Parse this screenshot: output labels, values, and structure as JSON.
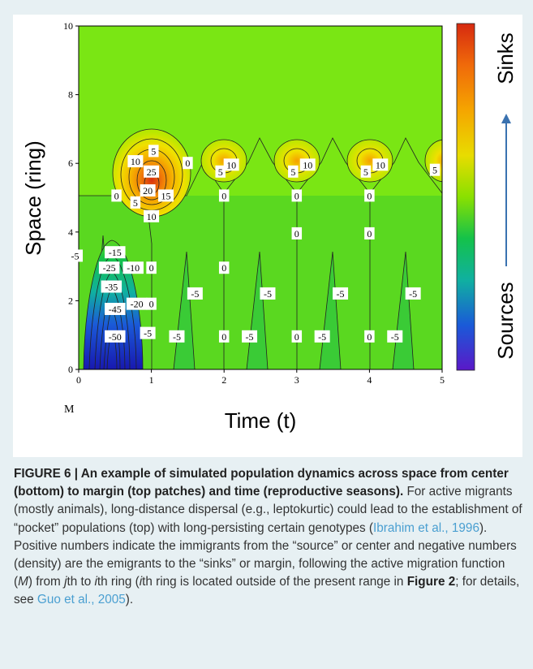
{
  "chart_data": {
    "type": "heatmap",
    "subtype": "contour",
    "xlabel": "Time (t)",
    "ylabel": "Space (ring)",
    "corner_label": "M",
    "xlim": [
      0,
      5
    ],
    "ylim": [
      0,
      10
    ],
    "x_ticks": [
      "0",
      "1",
      "2",
      "3",
      "4",
      "5"
    ],
    "y_ticks": [
      "0",
      "2",
      "4",
      "6",
      "8",
      "10"
    ],
    "grid": false,
    "colorbar": {
      "top_label": "Sinks",
      "bottom_label": "Sources",
      "colors": [
        "#d62a10",
        "#f06a0a",
        "#f5a500",
        "#e8dc00",
        "#8ae000",
        "#14c24a",
        "#10b0a0",
        "#1a5ad8",
        "#5a18c8"
      ]
    },
    "background_color": "#7ae614",
    "contour_labels": [
      {
        "x": 1.03,
        "y": 6.35,
        "text": "5"
      },
      {
        "x": 0.78,
        "y": 6.05,
        "text": "10"
      },
      {
        "x": 1.0,
        "y": 5.75,
        "text": "25"
      },
      {
        "x": 0.95,
        "y": 5.2,
        "text": "20"
      },
      {
        "x": 1.2,
        "y": 5.05,
        "text": "15"
      },
      {
        "x": 0.78,
        "y": 4.85,
        "text": "5"
      },
      {
        "x": 0.52,
        "y": 5.05,
        "text": "0"
      },
      {
        "x": 1.0,
        "y": 4.45,
        "text": "10"
      },
      {
        "x": 1.5,
        "y": 6.0,
        "text": "0"
      },
      {
        "x": 1.95,
        "y": 5.75,
        "text": "5"
      },
      {
        "x": 2.1,
        "y": 5.95,
        "text": "10"
      },
      {
        "x": 2.95,
        "y": 5.75,
        "text": "5"
      },
      {
        "x": 3.15,
        "y": 5.95,
        "text": "10"
      },
      {
        "x": 3.95,
        "y": 5.75,
        "text": "5"
      },
      {
        "x": 4.15,
        "y": 5.95,
        "text": "10"
      },
      {
        "x": 4.9,
        "y": 5.8,
        "text": "5"
      },
      {
        "x": 2.0,
        "y": 5.05,
        "text": "0"
      },
      {
        "x": 3.0,
        "y": 5.05,
        "text": "0"
      },
      {
        "x": 4.0,
        "y": 5.05,
        "text": "0"
      },
      {
        "x": 3.0,
        "y": 3.95,
        "text": "0"
      },
      {
        "x": 4.0,
        "y": 3.95,
        "text": "0"
      },
      {
        "x": 2.0,
        "y": 2.95,
        "text": "0"
      },
      {
        "x": -0.05,
        "y": 3.3,
        "text": "-5"
      },
      {
        "x": 0.5,
        "y": 3.4,
        "text": "-15"
      },
      {
        "x": 0.42,
        "y": 2.95,
        "text": "-25"
      },
      {
        "x": 0.75,
        "y": 2.95,
        "text": "-10"
      },
      {
        "x": 1.0,
        "y": 2.95,
        "text": "0"
      },
      {
        "x": 0.45,
        "y": 2.4,
        "text": "-35"
      },
      {
        "x": 1.6,
        "y": 2.2,
        "text": "-5"
      },
      {
        "x": 2.6,
        "y": 2.2,
        "text": "-5"
      },
      {
        "x": 3.6,
        "y": 2.2,
        "text": "-5"
      },
      {
        "x": 4.6,
        "y": 2.2,
        "text": "-5"
      },
      {
        "x": 0.8,
        "y": 1.9,
        "text": "-20"
      },
      {
        "x": 1.0,
        "y": 1.9,
        "text": "0"
      },
      {
        "x": 0.5,
        "y": 1.75,
        "text": "-45"
      },
      {
        "x": 0.5,
        "y": 0.95,
        "text": "-50"
      },
      {
        "x": 0.95,
        "y": 1.05,
        "text": "-5"
      },
      {
        "x": 1.35,
        "y": 0.95,
        "text": "-5"
      },
      {
        "x": 2.0,
        "y": 0.95,
        "text": "0"
      },
      {
        "x": 2.35,
        "y": 0.95,
        "text": "-5"
      },
      {
        "x": 3.0,
        "y": 0.95,
        "text": "0"
      },
      {
        "x": 3.35,
        "y": 0.95,
        "text": "-5"
      },
      {
        "x": 4.0,
        "y": 0.95,
        "text": "0"
      },
      {
        "x": 4.35,
        "y": 0.95,
        "text": "-5"
      }
    ]
  },
  "caption": {
    "label": "FIGURE 6 | An example of simulated population dynamics across space from center (bottom) to margin (top patches) and time (reproductive seasons).",
    "text_1": " For active migrants (mostly animals), long-distance dispersal (e.g., leptokurtic) could lead to the establishment of “pocket” populations (top) with long-persisting certain genotypes (",
    "ref_1": "Ibrahim et al., 1996",
    "text_2": "). Positive numbers indicate the immigrants from the “source” or center and negative numbers (density) are the emigrants to the “sinks” or margin, following the active migration function (",
    "fn_m": "M",
    "text_3": ") from ",
    "fn_j": "j",
    "text_4": "th to ",
    "fn_i": "i",
    "text_5": "th ring (",
    "fn_i2": "i",
    "text_6": "th ring is located outside of the present range in ",
    "fig_ref": "Figure 2",
    "text_7": "; for details, see ",
    "ref_2": "Guo et al., 2005",
    "text_8": ")."
  }
}
